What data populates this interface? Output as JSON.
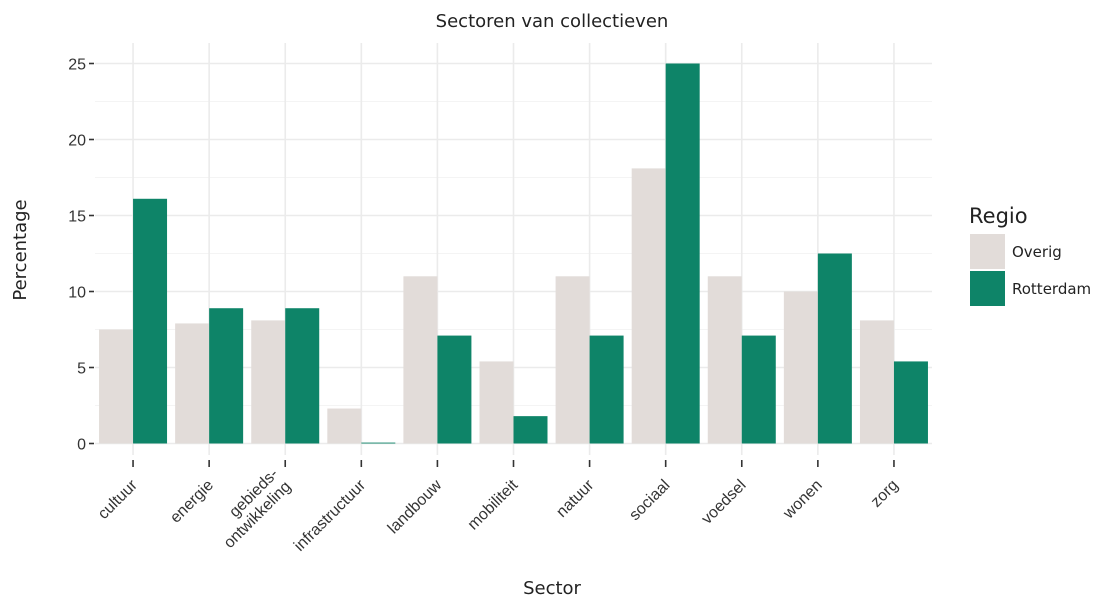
{
  "chart_data": {
    "type": "bar",
    "title": "Sectoren van collectieven",
    "xlabel": "Sector",
    "ylabel": "Percentage",
    "ylim": [
      0,
      26
    ],
    "yticks": [
      0,
      5,
      10,
      15,
      20,
      25
    ],
    "categories": [
      [
        "cultuur"
      ],
      [
        "energie"
      ],
      [
        "gebieds-",
        "ontwikkeling"
      ],
      [
        "infrastructuur"
      ],
      [
        "landbouw"
      ],
      [
        "mobiliteit"
      ],
      [
        "natuur"
      ],
      [
        "sociaal"
      ],
      [
        "voedsel"
      ],
      [
        "wonen"
      ],
      [
        "zorg"
      ]
    ],
    "series": [
      {
        "name": "Overig",
        "color": "#e2dcd9",
        "values": [
          7.5,
          7.9,
          8.1,
          2.3,
          11.0,
          5.4,
          11.0,
          18.1,
          11.0,
          10.0,
          8.1
        ]
      },
      {
        "name": "Rotterdam",
        "color": "#0e8468",
        "values": [
          16.1,
          8.9,
          8.9,
          0.0,
          7.1,
          1.8,
          7.1,
          25.0,
          7.1,
          12.5,
          5.4
        ]
      }
    ],
    "legend": {
      "title": "Regio",
      "position": "right"
    },
    "grid": true
  }
}
